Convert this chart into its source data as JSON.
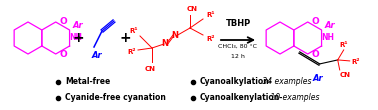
{
  "bg_color": "#ffffff",
  "magenta": "#FF00FF",
  "blue": "#0000FF",
  "red": "#FF0000",
  "black": "#000000",
  "fig_width": 3.78,
  "fig_height": 1.1,
  "dpi": 100,
  "bullet1": "Metal-free",
  "bullet2": "Cyanide-free cyanation",
  "bullet3": "Cyanoalkylation-",
  "bullet3b": " 34 examples",
  "bullet4": "Cyanoalkenylation-",
  "bullet4b": " 10 examples",
  "condition1": "TBHP",
  "condition2": "CHCl₃, 80 °C",
  "condition3": "12 h"
}
